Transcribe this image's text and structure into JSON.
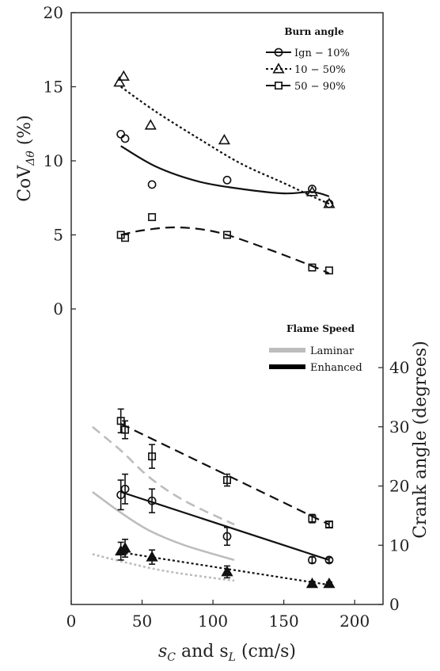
{
  "chart_data": {
    "type": "scatter",
    "x_axis": {
      "label_main": "s",
      "label_sub1": "C",
      "label_mid": " and s",
      "label_sub2": "L",
      "label_end": " (cm/s)",
      "range": [
        0,
        220
      ],
      "ticks": [
        "0",
        "50",
        "100",
        "150",
        "200"
      ]
    },
    "top_panel": {
      "y_label_main": "CoV",
      "y_label_sub": "Δθ",
      "y_label_end": " (%)",
      "range": [
        0,
        20
      ],
      "ticks": [
        "0",
        "5",
        "10",
        "15",
        "20"
      ],
      "legend_title": "Burn angle",
      "series": [
        {
          "name": "Ign − 10%",
          "marker": "circle",
          "line": "solid",
          "points": [
            [
              35,
              11.8
            ],
            [
              38,
              11.5
            ],
            [
              57,
              8.4
            ],
            [
              110,
              8.7
            ],
            [
              170,
              8.1
            ],
            [
              182,
              7.1
            ]
          ],
          "fit": [
            [
              35,
              11.0
            ],
            [
              60,
              9.6
            ],
            [
              90,
              8.6
            ],
            [
              120,
              8.1
            ],
            [
              150,
              7.8
            ],
            [
              170,
              7.9
            ],
            [
              182,
              7.6
            ]
          ]
        },
        {
          "name": "10 − 50%",
          "marker": "triangle",
          "line": "dotted",
          "points": [
            [
              34,
              15.3
            ],
            [
              37,
              15.7
            ],
            [
              56,
              12.4
            ],
            [
              108,
              11.4
            ],
            [
              170,
              7.9
            ],
            [
              182,
              7.1
            ]
          ],
          "fit": [
            [
              35,
              15.0
            ],
            [
              60,
              13.3
            ],
            [
              90,
              11.5
            ],
            [
              120,
              9.8
            ],
            [
              150,
              8.5
            ],
            [
              170,
              7.6
            ],
            [
              182,
              7.1
            ]
          ]
        },
        {
          "name": "50 − 90%",
          "marker": "square",
          "line": "dashed",
          "points": [
            [
              35,
              5.0
            ],
            [
              38,
              4.8
            ],
            [
              57,
              6.2
            ],
            [
              110,
              5.0
            ],
            [
              170,
              2.8
            ],
            [
              182,
              2.6
            ]
          ],
          "fit": [
            [
              35,
              5.0
            ],
            [
              50,
              5.3
            ],
            [
              70,
              5.5
            ],
            [
              90,
              5.4
            ],
            [
              110,
              5.0
            ],
            [
              140,
              4.0
            ],
            [
              170,
              2.9
            ],
            [
              182,
              2.4
            ]
          ]
        }
      ]
    },
    "bottom_panel": {
      "y_label": "Crank angle (degrees)",
      "range": [
        0,
        50
      ],
      "ticks": [
        "0",
        "10",
        "20",
        "30",
        "40"
      ],
      "legend_title": "Flame Speed",
      "legend": [
        {
          "name": "Laminar",
          "color": "#bdbdbd"
        },
        {
          "name": "Enhanced",
          "color": "#000000"
        }
      ],
      "enhanced": [
        {
          "marker": "square",
          "line": "dashed",
          "points": [
            [
              35,
              31
            ],
            [
              38,
              29.5
            ],
            [
              57,
              25
            ],
            [
              110,
              21
            ],
            [
              170,
              14.5
            ],
            [
              182,
              13.5
            ]
          ],
          "errors": [
            2,
            1.5,
            2,
            1,
            0.7,
            0.5
          ],
          "fit": [
            [
              35,
              30.5
            ],
            [
              182,
              13.5
            ]
          ]
        },
        {
          "marker": "circle",
          "line": "solid",
          "points": [
            [
              35,
              18.5
            ],
            [
              38,
              19.5
            ],
            [
              57,
              17.5
            ],
            [
              110,
              11.5
            ],
            [
              170,
              7.5
            ],
            [
              182,
              7.5
            ]
          ],
          "errors": [
            2.5,
            2.5,
            2,
            1.5,
            0.5,
            0.4
          ],
          "fit": [
            [
              35,
              19.0
            ],
            [
              182,
              7.5
            ]
          ]
        },
        {
          "marker": "triangle",
          "line": "dotted",
          "points": [
            [
              35,
              9.0
            ],
            [
              38,
              9.5
            ],
            [
              57,
              8.0
            ],
            [
              110,
              5.5
            ],
            [
              170,
              3.5
            ],
            [
              182,
              3.5
            ]
          ],
          "errors": [
            1.5,
            1.5,
            1.2,
            1,
            0.4,
            0.3
          ],
          "fit": [
            [
              35,
              8.8
            ],
            [
              182,
              3.3
            ]
          ]
        }
      ],
      "laminar": [
        {
          "line": "dashed",
          "points": [
            [
              15,
              30
            ],
            [
              35,
              26
            ],
            [
              55,
              21.5
            ],
            [
              80,
              17.5
            ],
            [
              115,
              13.5
            ]
          ]
        },
        {
          "line": "solid",
          "points": [
            [
              15,
              19
            ],
            [
              35,
              15.5
            ],
            [
              55,
              12.5
            ],
            [
              80,
              10
            ],
            [
              115,
              7.5
            ]
          ]
        },
        {
          "line": "dotted",
          "points": [
            [
              15,
              8.5
            ],
            [
              40,
              7
            ],
            [
              70,
              5.5
            ],
            [
              115,
              4
            ]
          ]
        }
      ]
    }
  }
}
